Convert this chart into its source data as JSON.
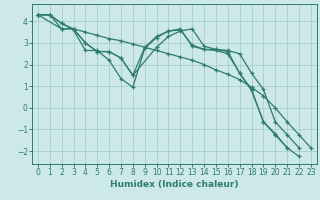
{
  "xlabel": "Humidex (Indice chaleur)",
  "bg_color": "#cde8e8",
  "grid_color": "#a8cccc",
  "line_color": "#2e7b70",
  "xlim": [
    -0.5,
    23.5
  ],
  "ylim": [
    -2.6,
    4.8
  ],
  "yticks": [
    -2,
    -1,
    0,
    1,
    2,
    3,
    4
  ],
  "xticks": [
    0,
    1,
    2,
    3,
    4,
    5,
    6,
    7,
    8,
    9,
    10,
    11,
    12,
    13,
    14,
    15,
    16,
    17,
    18,
    19,
    20,
    21,
    22,
    23
  ],
  "lines": [
    {
      "x": [
        0,
        1,
        2,
        3,
        4,
        5,
        6,
        7,
        8,
        9,
        10,
        11,
        12,
        13,
        14,
        15,
        16,
        17,
        18,
        19,
        20,
        21,
        22,
        23
      ],
      "y": [
        4.3,
        4.3,
        3.9,
        3.6,
        2.65,
        2.65,
        2.2,
        1.35,
        0.95,
        2.75,
        3.25,
        3.55,
        3.6,
        2.9,
        2.7,
        2.7,
        2.6,
        1.6,
        0.8,
        -0.65,
        -1.2,
        -1.85,
        -2.25,
        null
      ]
    },
    {
      "x": [
        0,
        1,
        2,
        3,
        4,
        5,
        6,
        7,
        8,
        10,
        11,
        12,
        13,
        14,
        15,
        16,
        17,
        18,
        19,
        20,
        21,
        22,
        23
      ],
      "y": [
        4.3,
        4.3,
        3.65,
        3.65,
        3.0,
        2.6,
        2.6,
        2.3,
        1.5,
        2.8,
        3.3,
        3.55,
        3.65,
        2.85,
        2.7,
        2.65,
        2.5,
        1.6,
        0.85,
        -0.65,
        -1.25,
        -1.85,
        null
      ]
    },
    {
      "x": [
        0,
        2,
        3,
        4,
        5,
        6,
        7,
        8,
        9,
        10,
        11,
        12,
        13,
        14,
        15,
        16,
        17,
        18,
        19,
        20,
        21,
        22,
        23
      ],
      "y": [
        4.3,
        3.65,
        3.65,
        3.0,
        2.6,
        2.6,
        2.3,
        1.5,
        2.8,
        3.3,
        3.55,
        3.65,
        2.85,
        2.7,
        2.65,
        2.5,
        1.6,
        0.85,
        -0.65,
        -1.25,
        -1.85,
        null,
        null
      ]
    },
    {
      "x": [
        0,
        1,
        2,
        3,
        4,
        5,
        6,
        7,
        8,
        9,
        10,
        11,
        12,
        13,
        14,
        15,
        16,
        17,
        18,
        19,
        20,
        21,
        22,
        23
      ],
      "y": [
        4.3,
        4.3,
        3.9,
        3.65,
        3.5,
        3.35,
        3.2,
        3.1,
        2.95,
        2.8,
        2.65,
        2.5,
        2.35,
        2.2,
        2.0,
        1.75,
        1.55,
        1.3,
        0.95,
        0.55,
        0.0,
        -0.65,
        -1.25,
        -1.85
      ]
    }
  ]
}
